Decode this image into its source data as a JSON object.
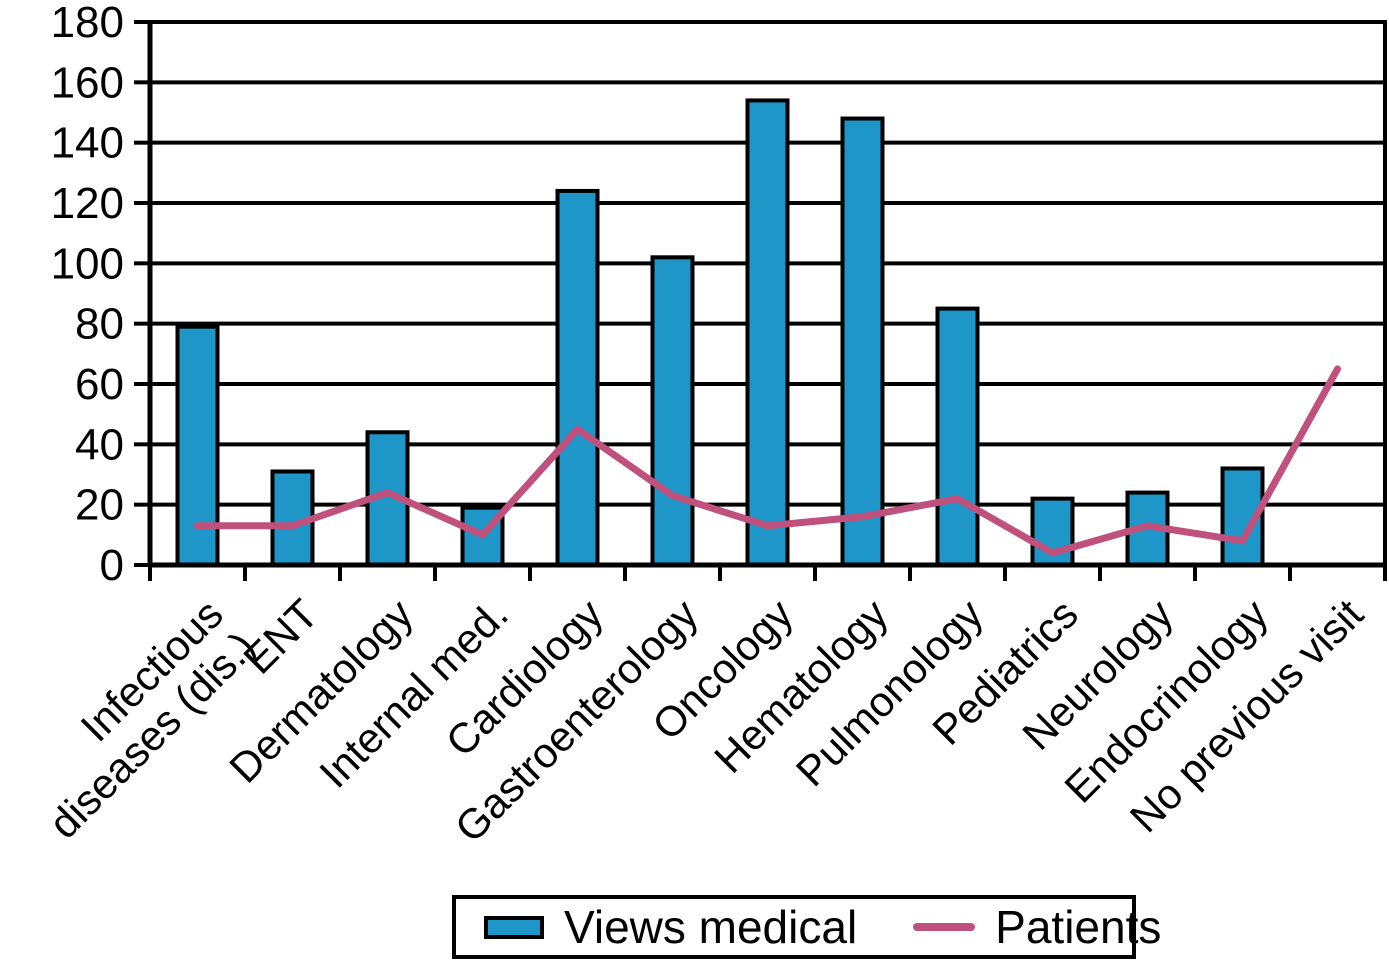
{
  "chart_data": {
    "type": "bar",
    "title": "",
    "xlabel": "",
    "ylabel": "",
    "categories": [
      "Infectious\ndiseases (dis.)",
      "ENT",
      "Dermatology",
      "Internal med.",
      "Cardiology",
      "Gastroenterology",
      "Oncology",
      "Hematology",
      "Pulmonology",
      "Pediatrics",
      "Neurology",
      "Endocrinology",
      "No previous visit"
    ],
    "series": [
      {
        "name": "Views medical",
        "type": "bar",
        "color": "#1e96c8",
        "values": [
          79,
          31,
          44,
          19,
          124,
          102,
          154,
          148,
          85,
          22,
          24,
          32,
          null
        ]
      },
      {
        "name": "Patients",
        "type": "line",
        "color": "#c0507c",
        "values": [
          13,
          13,
          24,
          10,
          45,
          23,
          13,
          16,
          22,
          4,
          13,
          8,
          65
        ]
      }
    ],
    "ylim": [
      0,
      180
    ],
    "yticks": [
      0,
      20,
      40,
      60,
      80,
      100,
      120,
      140,
      160,
      180
    ],
    "grid": "horizontal",
    "grid_color": "#000000",
    "legend_position": "bottom"
  },
  "legend": {
    "items": [
      {
        "label": "Views medical",
        "swatch": "bar",
        "color": "#1e96c8"
      },
      {
        "label": "Patients",
        "swatch": "line",
        "color": "#c0507c"
      }
    ]
  }
}
